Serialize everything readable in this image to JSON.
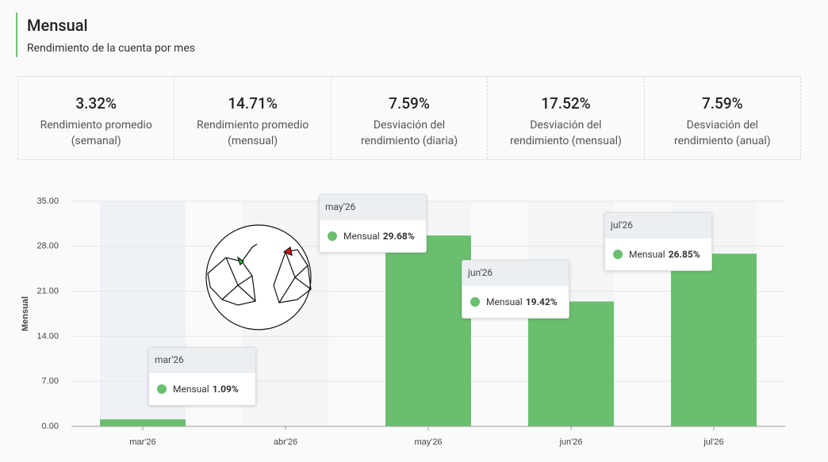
{
  "header": {
    "title": "Mensual",
    "subtitle": "Rendimiento de la cuenta por mes"
  },
  "stats": [
    {
      "value": "3.32%",
      "label": "Rendimiento promedio (semanal)"
    },
    {
      "value": "14.71%",
      "label": "Rendimiento promedio (mensual)"
    },
    {
      "value": "7.59%",
      "label": "Desviación del rendimiento (diaria)"
    },
    {
      "value": "17.52%",
      "label": "Desviación del rendimiento (mensual)"
    },
    {
      "value": "7.59%",
      "label": "Desviación del rendimiento (anual)"
    }
  ],
  "chart_data": {
    "type": "bar",
    "y_label": "Mensual",
    "categories": [
      "mar'26",
      "abr'26",
      "may'26",
      "jun'26",
      "jul'26"
    ],
    "series": [
      {
        "name": "Mensual",
        "color": "#6abf6e",
        "values": [
          1.09,
          null,
          29.68,
          19.42,
          26.85
        ],
        "value_labels": [
          "1.09%",
          null,
          "29.68%",
          "19.42%",
          "26.85%"
        ]
      }
    ],
    "ylim": [
      0,
      35
    ],
    "yticks": [
      {
        "value": 0,
        "label": "0.00"
      },
      {
        "value": 7,
        "label": "7.00"
      },
      {
        "value": 14,
        "label": "14.00"
      },
      {
        "value": 21,
        "label": "21.00"
      },
      {
        "value": 28,
        "label": "28.00"
      },
      {
        "value": 35,
        "label": "35.00"
      }
    ],
    "grid": true
  }
}
